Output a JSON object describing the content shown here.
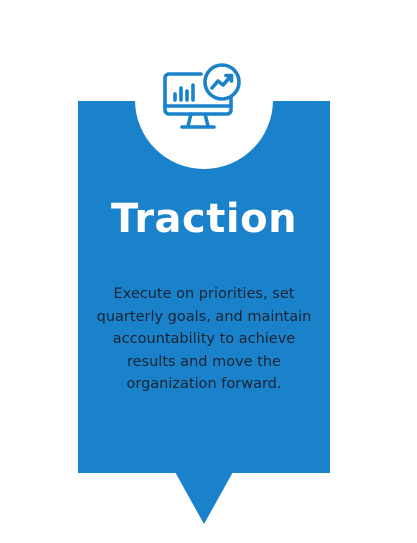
{
  "card": {
    "icon": "monitor-analytics-icon",
    "title": "Traction",
    "description": "Execute on priorities, set quarterly goals, and maintain accountability to achieve results and move the organization forward."
  },
  "colors": {
    "card_background": "#1a82cb",
    "icon_circle": "#ffffff",
    "title_text": "#ffffff",
    "body_text": "#1a2433"
  }
}
